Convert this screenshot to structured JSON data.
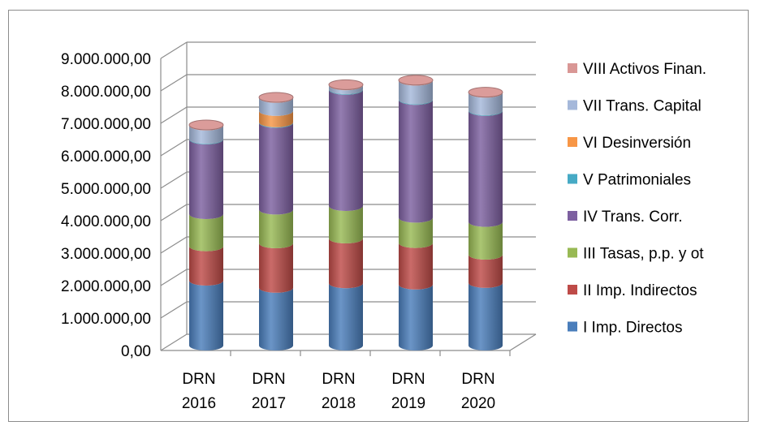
{
  "chart_data": {
    "type": "bar",
    "stacked": true,
    "style": "3d-cylinder",
    "categories": [
      [
        "DRN",
        "2016"
      ],
      [
        "DRN",
        "2017"
      ],
      [
        "DRN",
        "2018"
      ],
      [
        "DRN",
        "2019"
      ],
      [
        "DRN",
        "2020"
      ]
    ],
    "ylim": [
      0,
      9000000
    ],
    "yticks": [
      "0,00",
      "1.000.000,00",
      "2.000.000,00",
      "3.000.000,00",
      "4.000.000,00",
      "5.000.000,00",
      "6.000.000,00",
      "7.000.000,00",
      "8.000.000,00",
      "9.000.000,00"
    ],
    "grid": true,
    "legend_position": "right",
    "series": [
      {
        "name": "I Imp. Directos",
        "color": "#4a7ebb",
        "values": [
          2000000,
          1780000,
          1920000,
          1880000,
          1930000
        ]
      },
      {
        "name": "II Imp. Indirectos",
        "color": "#be4b48",
        "values": [
          1060000,
          1370000,
          1380000,
          1280000,
          870000
        ]
      },
      {
        "name": "III Tasas, p.p. y ot",
        "color": "#98b954",
        "values": [
          990000,
          1040000,
          1000000,
          780000,
          1010000
        ]
      },
      {
        "name": "IV Trans. Corr.",
        "color": "#7d60a0",
        "values": [
          2300000,
          2670000,
          3580000,
          3630000,
          3420000
        ]
      },
      {
        "name": "V Patrimoniales",
        "color": "#46aac5",
        "values": [
          20000,
          20000,
          20000,
          20000,
          20000
        ]
      },
      {
        "name": "VI Desinversión",
        "color": "#f79646",
        "values": [
          0,
          350000,
          0,
          0,
          0
        ]
      },
      {
        "name": "VII Trans. Capital",
        "color": "#a5b8da",
        "values": [
          410000,
          400000,
          120000,
          570000,
          540000
        ]
      },
      {
        "name": "VIII Activos Finan.",
        "color": "#d99795",
        "values": [
          20000,
          20000,
          20000,
          20000,
          20000
        ]
      }
    ]
  }
}
